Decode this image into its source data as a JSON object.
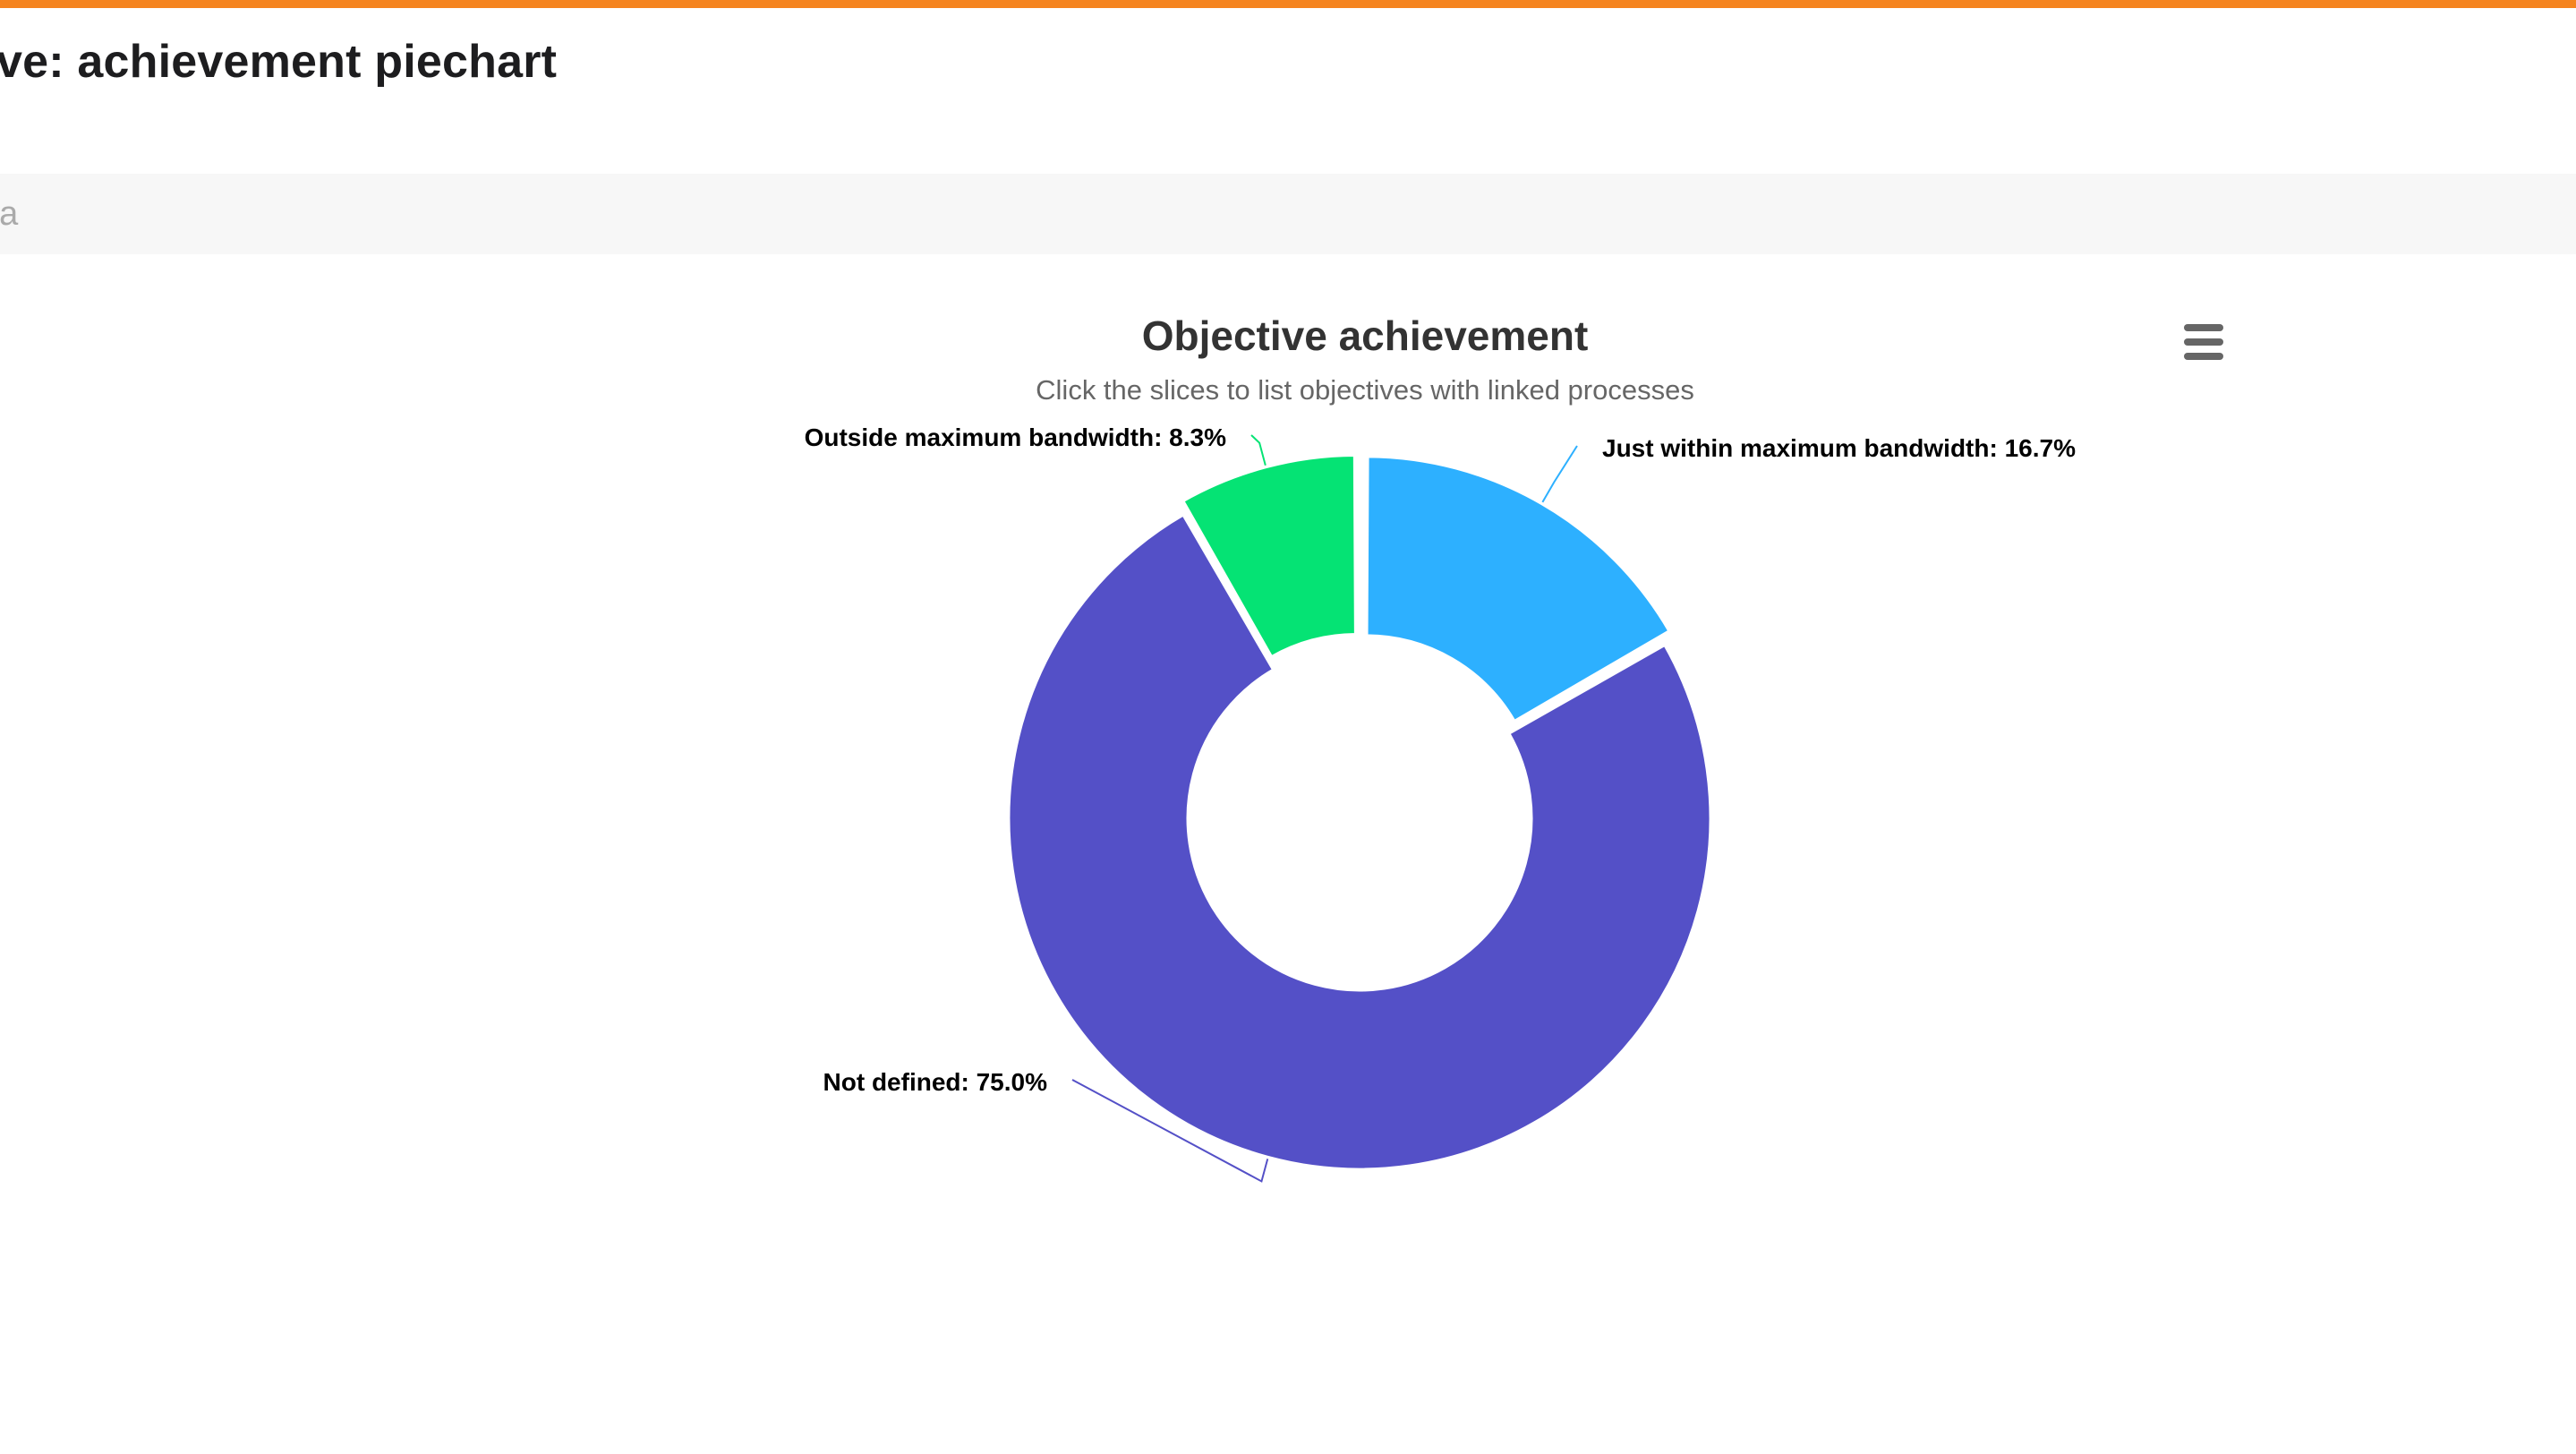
{
  "page": {
    "title": "ve: achievement piechart",
    "accent_color": "#f5841f"
  },
  "filter": {
    "placeholder": "ria"
  },
  "toolbar": {
    "menu_icon": "hamburger-menu-icon"
  },
  "chart_data": {
    "type": "pie",
    "donut": true,
    "title": "Objective achievement",
    "subtitle": "Click the slices to list objectives with linked processes",
    "slices": [
      {
        "name": "Just within maximum bandwidth",
        "value": 16.7,
        "label": "Just within maximum bandwidth: 16.7%",
        "color": "#2db0ff"
      },
      {
        "name": "Not defined",
        "value": 75.0,
        "label": "Not defined: 75.0%",
        "color": "#5450c7"
      },
      {
        "name": "Outside maximum bandwidth",
        "value": 8.3,
        "label": "Outside maximum bandwidth: 8.3%",
        "color": "#05e374"
      }
    ]
  }
}
